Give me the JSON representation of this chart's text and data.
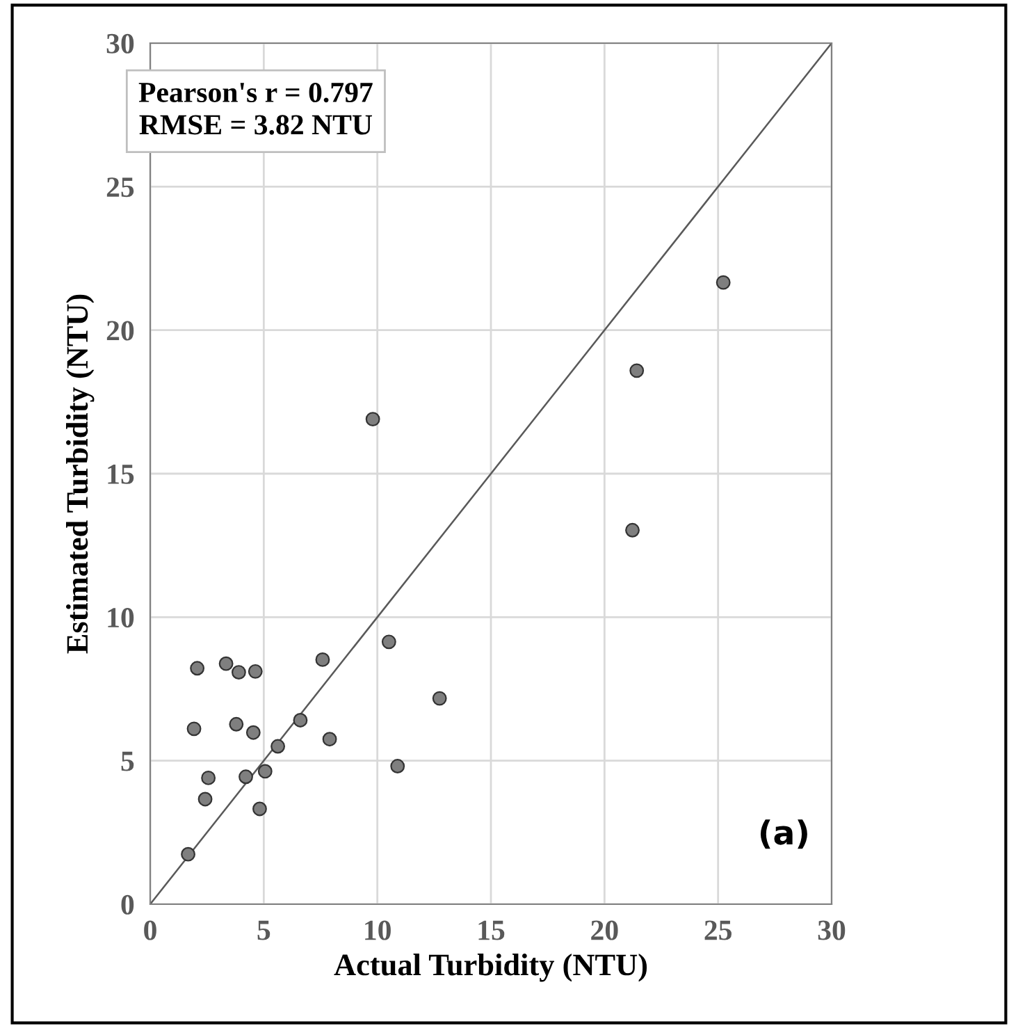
{
  "chart_data": {
    "type": "scatter",
    "xlabel": "Actual Turbidity (NTU)",
    "ylabel": "Estimated Turbidity (NTU)",
    "annotations": [
      "Pearson's r = 0.797\nRMSE = 3.82 NTU",
      "(a)"
    ],
    "xlim": [
      0,
      30
    ],
    "ylim": [
      0,
      30
    ],
    "xticks": [
      0,
      5,
      10,
      15,
      20,
      25,
      30
    ],
    "yticks": [
      0,
      5,
      10,
      15,
      20,
      25,
      30
    ],
    "grid": true,
    "marker": "circle",
    "series": [
      {
        "color": "#7f7f7f",
        "x": [
          1.67,
          2.07,
          1.93,
          2.56,
          2.42,
          3.34,
          3.9,
          4.63,
          3.79,
          4.54,
          4.21,
          5.06,
          4.82,
          5.62,
          6.61,
          7.59,
          7.9,
          9.8,
          10.51,
          10.89,
          12.74,
          21.23,
          21.42,
          25.23
        ],
        "values": [
          1.74,
          8.22,
          6.11,
          4.4,
          3.66,
          8.38,
          8.08,
          8.11,
          6.27,
          5.98,
          4.44,
          4.63,
          3.32,
          5.5,
          6.41,
          8.52,
          5.75,
          16.9,
          9.14,
          4.81,
          7.17,
          13.03,
          18.59,
          21.66
        ]
      },
      {
        "type": "line",
        "color": "#595959",
        "x": [
          0,
          30
        ],
        "values": [
          0,
          30
        ],
        "marker": "none"
      }
    ]
  }
}
